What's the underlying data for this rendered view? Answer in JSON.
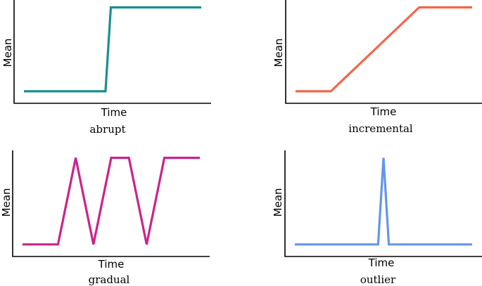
{
  "chart_data": [
    {
      "type": "line",
      "caption": "abrupt",
      "xlabel": "Time",
      "ylabel": "Mean",
      "color": "#1a8f8f",
      "xlim": [
        0,
        10
      ],
      "ylim": [
        0,
        1
      ],
      "x": [
        0,
        4.6,
        4.9,
        10
      ],
      "y": [
        0.04,
        0.04,
        0.98,
        0.98
      ]
    },
    {
      "type": "line",
      "caption": "incremental",
      "xlabel": "Time",
      "ylabel": "Mean",
      "color": "#f4664a",
      "xlim": [
        0,
        10
      ],
      "ylim": [
        0,
        1
      ],
      "x": [
        0,
        2,
        7,
        10
      ],
      "y": [
        0.04,
        0.04,
        0.98,
        0.98
      ]
    },
    {
      "type": "line",
      "caption": "gradual",
      "xlabel": "Time",
      "ylabel": "Mean",
      "color": "#cc2388",
      "xlim": [
        0,
        10
      ],
      "ylim": [
        0,
        1
      ],
      "x": [
        0,
        2,
        3,
        4,
        5,
        6,
        7,
        8,
        10
      ],
      "y": [
        0.04,
        0.04,
        0.98,
        0.04,
        0.98,
        0.98,
        0.04,
        0.98,
        0.98
      ]
    },
    {
      "type": "line",
      "caption": "outlier",
      "xlabel": "Time",
      "ylabel": "Mean",
      "color": "#6495ed",
      "xlim": [
        0,
        10
      ],
      "ylim": [
        0,
        1
      ],
      "x": [
        0,
        4.7,
        5,
        5.3,
        10
      ],
      "y": [
        0.04,
        0.04,
        0.98,
        0.04,
        0.04
      ]
    }
  ]
}
